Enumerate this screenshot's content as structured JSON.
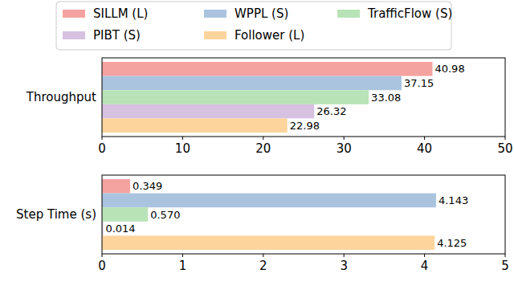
{
  "chart_data": [
    {
      "type": "bar",
      "orientation": "horizontal",
      "legend": "top",
      "categories": [
        "Throughput"
      ],
      "series": [
        {
          "name": "SILLM (L)",
          "color": "#f4a3a0",
          "values": [
            40.98
          ]
        },
        {
          "name": "WPPL (S)",
          "color": "#aac4df",
          "values": [
            37.15
          ]
        },
        {
          "name": "TrafficFlow (S)",
          "color": "#b8e3b7",
          "values": [
            33.08
          ]
        },
        {
          "name": "PIBT (S)",
          "color": "#d7c1e1",
          "values": [
            26.32
          ]
        },
        {
          "name": "Follower (L)",
          "color": "#fdd49c",
          "values": [
            22.98
          ]
        }
      ],
      "xlim": [
        0,
        50
      ],
      "xticks": [
        0,
        10,
        20,
        30,
        40,
        50
      ],
      "data_labels": true,
      "grid": false
    },
    {
      "type": "bar",
      "orientation": "horizontal",
      "categories": [
        "Step Time (s)"
      ],
      "series": [
        {
          "color": "#f4a3a0",
          "values": [
            0.349
          ]
        },
        {
          "color": "#aac4df",
          "values": [
            4.143
          ]
        },
        {
          "color": "#b8e3b7",
          "values": [
            0.57
          ],
          "value_labels": [
            "0.570"
          ]
        },
        {
          "color": "#d7c1e1",
          "values": [
            0.014
          ]
        },
        {
          "color": "#fdd49c",
          "values": [
            4.125
          ]
        }
      ],
      "xlim": [
        0,
        5
      ],
      "xticks": [
        0,
        1,
        2,
        3,
        4,
        5
      ],
      "data_labels": true,
      "grid": false
    }
  ]
}
